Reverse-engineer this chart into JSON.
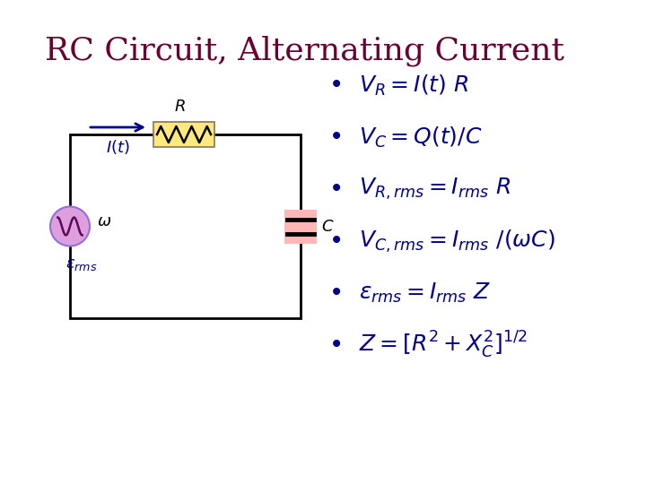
{
  "title": "RC Circuit, Alternating Current",
  "title_color": "#6B0032",
  "title_fontsize": 26,
  "bg_color": "#ffffff",
  "bullet_color": "#00008B",
  "bullet_fontsize": 18,
  "bullets": [
    "$V_R = I(t)\\ R$",
    "$V_C = Q(t)/C$",
    "$V_{R,rms}= I_{rms}\\ R$",
    "$V_{C,rms} = I_{rms}\\ /(\\omega C)$",
    "$\\varepsilon_{rms} = I_{rms}\\ Z$",
    "$Z = [R^2+X_C^2]^{1/2}$"
  ],
  "circuit": {
    "resistor_color": "#FFE87C",
    "resistor_border": "#8B7355",
    "capacitor_color": "#FFB6B6",
    "source_color": "#DDA0DD",
    "source_border": "#9370DB",
    "wire_color": "#000000",
    "arrow_color": "#00008B",
    "label_color": "#00008B",
    "zigzag_color": "#000000",
    "label_fontsize": 13
  }
}
